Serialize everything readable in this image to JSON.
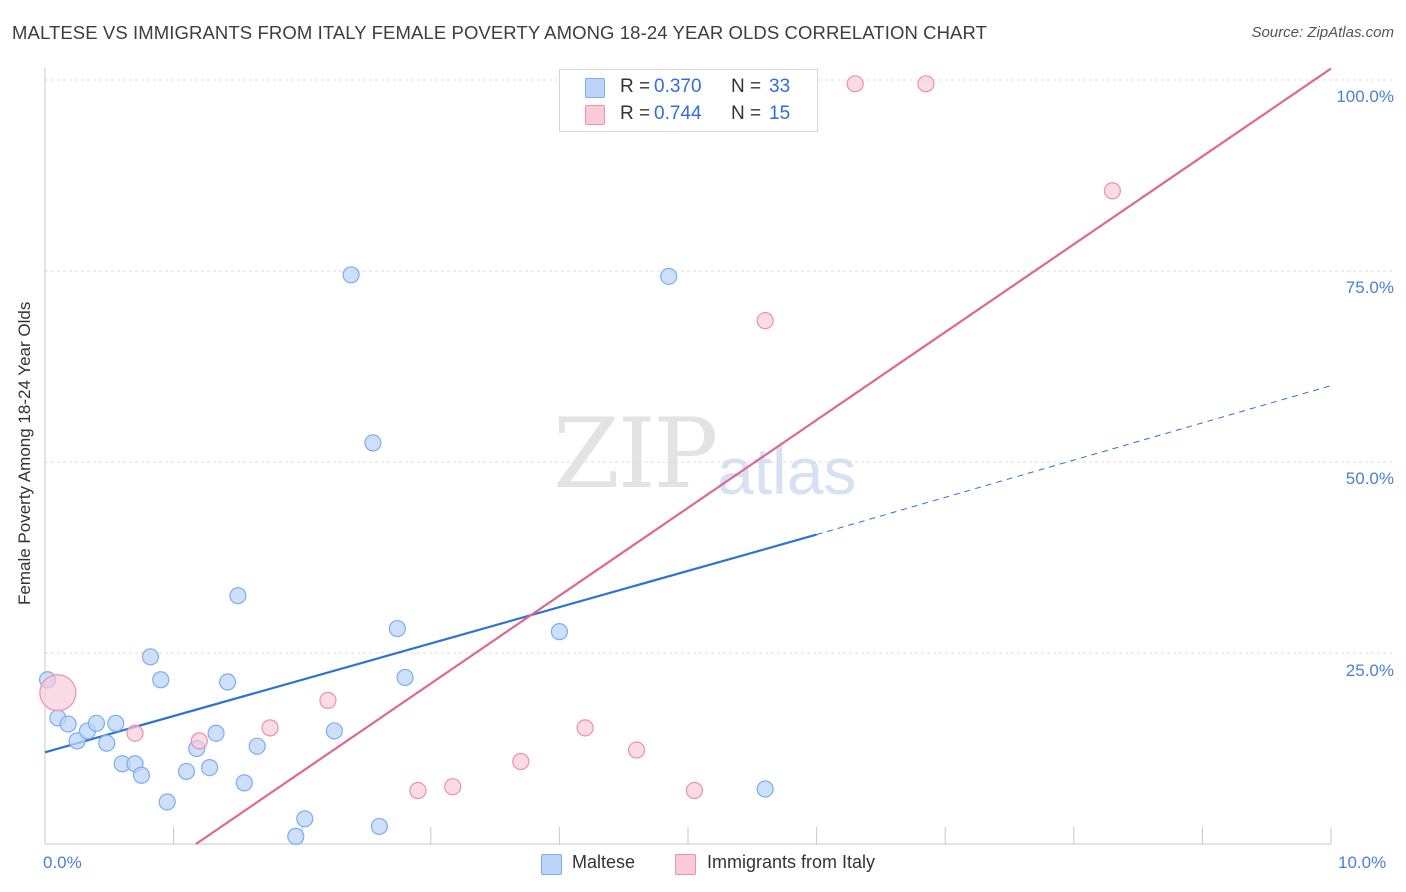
{
  "title": "MALTESE VS IMMIGRANTS FROM ITALY FEMALE POVERTY AMONG 18-24 YEAR OLDS CORRELATION CHART",
  "source": "Source: ZipAtlas.com",
  "watermark": {
    "zip": "ZIP",
    "atlas": "atlas"
  },
  "colors": {
    "maltese": "#7aaef0",
    "maltese_fill": "#bcd4f7",
    "italy": "#ee8fae",
    "italy_fill": "#f9cad8",
    "blue_line": "#2e72d2",
    "pink_line": "#e06690",
    "tick": "#4a7fd6"
  },
  "legend": {
    "rows": [
      {
        "r_label": "R =",
        "r_value": "0.370",
        "n_label": "N =",
        "n_value": "33"
      },
      {
        "r_label": "R =",
        "r_value": "0.744",
        "n_label": "N =",
        "n_value": "15"
      }
    ]
  },
  "bottom_legend": {
    "maltese": "Maltese",
    "italy": "Immigrants from Italy"
  },
  "chart_data": {
    "type": "scatter",
    "xlabel": "",
    "ylabel": "Female Poverty Among 18-24 Year Olds",
    "xlim": [
      0,
      10
    ],
    "ylim": [
      0,
      100
    ],
    "x_tick_labels": [
      "0.0%",
      "10.0%"
    ],
    "y_tick_labels": [
      "25.0%",
      "50.0%",
      "75.0%",
      "100.0%"
    ],
    "y_ticks": [
      25,
      50,
      75,
      100
    ],
    "grid": "horizontal dashed",
    "legend_placement": "top-center",
    "series": [
      {
        "name": "Maltese",
        "r": 0.37,
        "n": 33,
        "points": [
          [
            0.02,
            21.5
          ],
          [
            0.1,
            16.5
          ],
          [
            0.18,
            15.7
          ],
          [
            0.25,
            13.5
          ],
          [
            0.33,
            14.8
          ],
          [
            0.4,
            15.8
          ],
          [
            0.48,
            13.2
          ],
          [
            0.55,
            15.8
          ],
          [
            0.6,
            10.5
          ],
          [
            0.7,
            10.5
          ],
          [
            0.75,
            9.0
          ],
          [
            0.82,
            24.5
          ],
          [
            0.9,
            21.5
          ],
          [
            0.95,
            5.5
          ],
          [
            1.1,
            9.5
          ],
          [
            1.18,
            12.5
          ],
          [
            1.28,
            10.0
          ],
          [
            1.33,
            14.5
          ],
          [
            1.42,
            21.2
          ],
          [
            1.5,
            32.5
          ],
          [
            1.55,
            8.0
          ],
          [
            1.65,
            12.8
          ],
          [
            1.95,
            1.0
          ],
          [
            2.02,
            3.3
          ],
          [
            2.25,
            14.8
          ],
          [
            2.38,
            74.5
          ],
          [
            2.55,
            52.5
          ],
          [
            2.6,
            2.3
          ],
          [
            2.74,
            28.2
          ],
          [
            2.8,
            21.8
          ],
          [
            4.0,
            27.8
          ],
          [
            4.85,
            74.3
          ],
          [
            5.6,
            7.2
          ]
        ],
        "trend": {
          "x": [
            0.0,
            6.0
          ],
          "y": [
            12.0,
            40.5
          ],
          "dashed_to": [
            10.0,
            60.0
          ]
        }
      },
      {
        "name": "Immigrants from Italy",
        "r": 0.744,
        "n": 15,
        "points": [
          [
            0.1,
            19.8
          ],
          [
            0.7,
            14.5
          ],
          [
            1.2,
            13.5
          ],
          [
            1.75,
            15.2
          ],
          [
            2.2,
            18.8
          ],
          [
            2.9,
            7.0
          ],
          [
            3.17,
            7.5
          ],
          [
            3.7,
            10.8
          ],
          [
            4.2,
            15.2
          ],
          [
            4.6,
            12.3
          ],
          [
            5.05,
            7.0
          ],
          [
            5.6,
            68.5
          ],
          [
            6.3,
            99.5
          ],
          [
            6.85,
            99.5
          ],
          [
            8.3,
            85.5
          ]
        ],
        "trend": {
          "x": [
            0.0,
            10.0
          ],
          "y": [
            -13.5,
            101.5
          ]
        }
      }
    ]
  }
}
